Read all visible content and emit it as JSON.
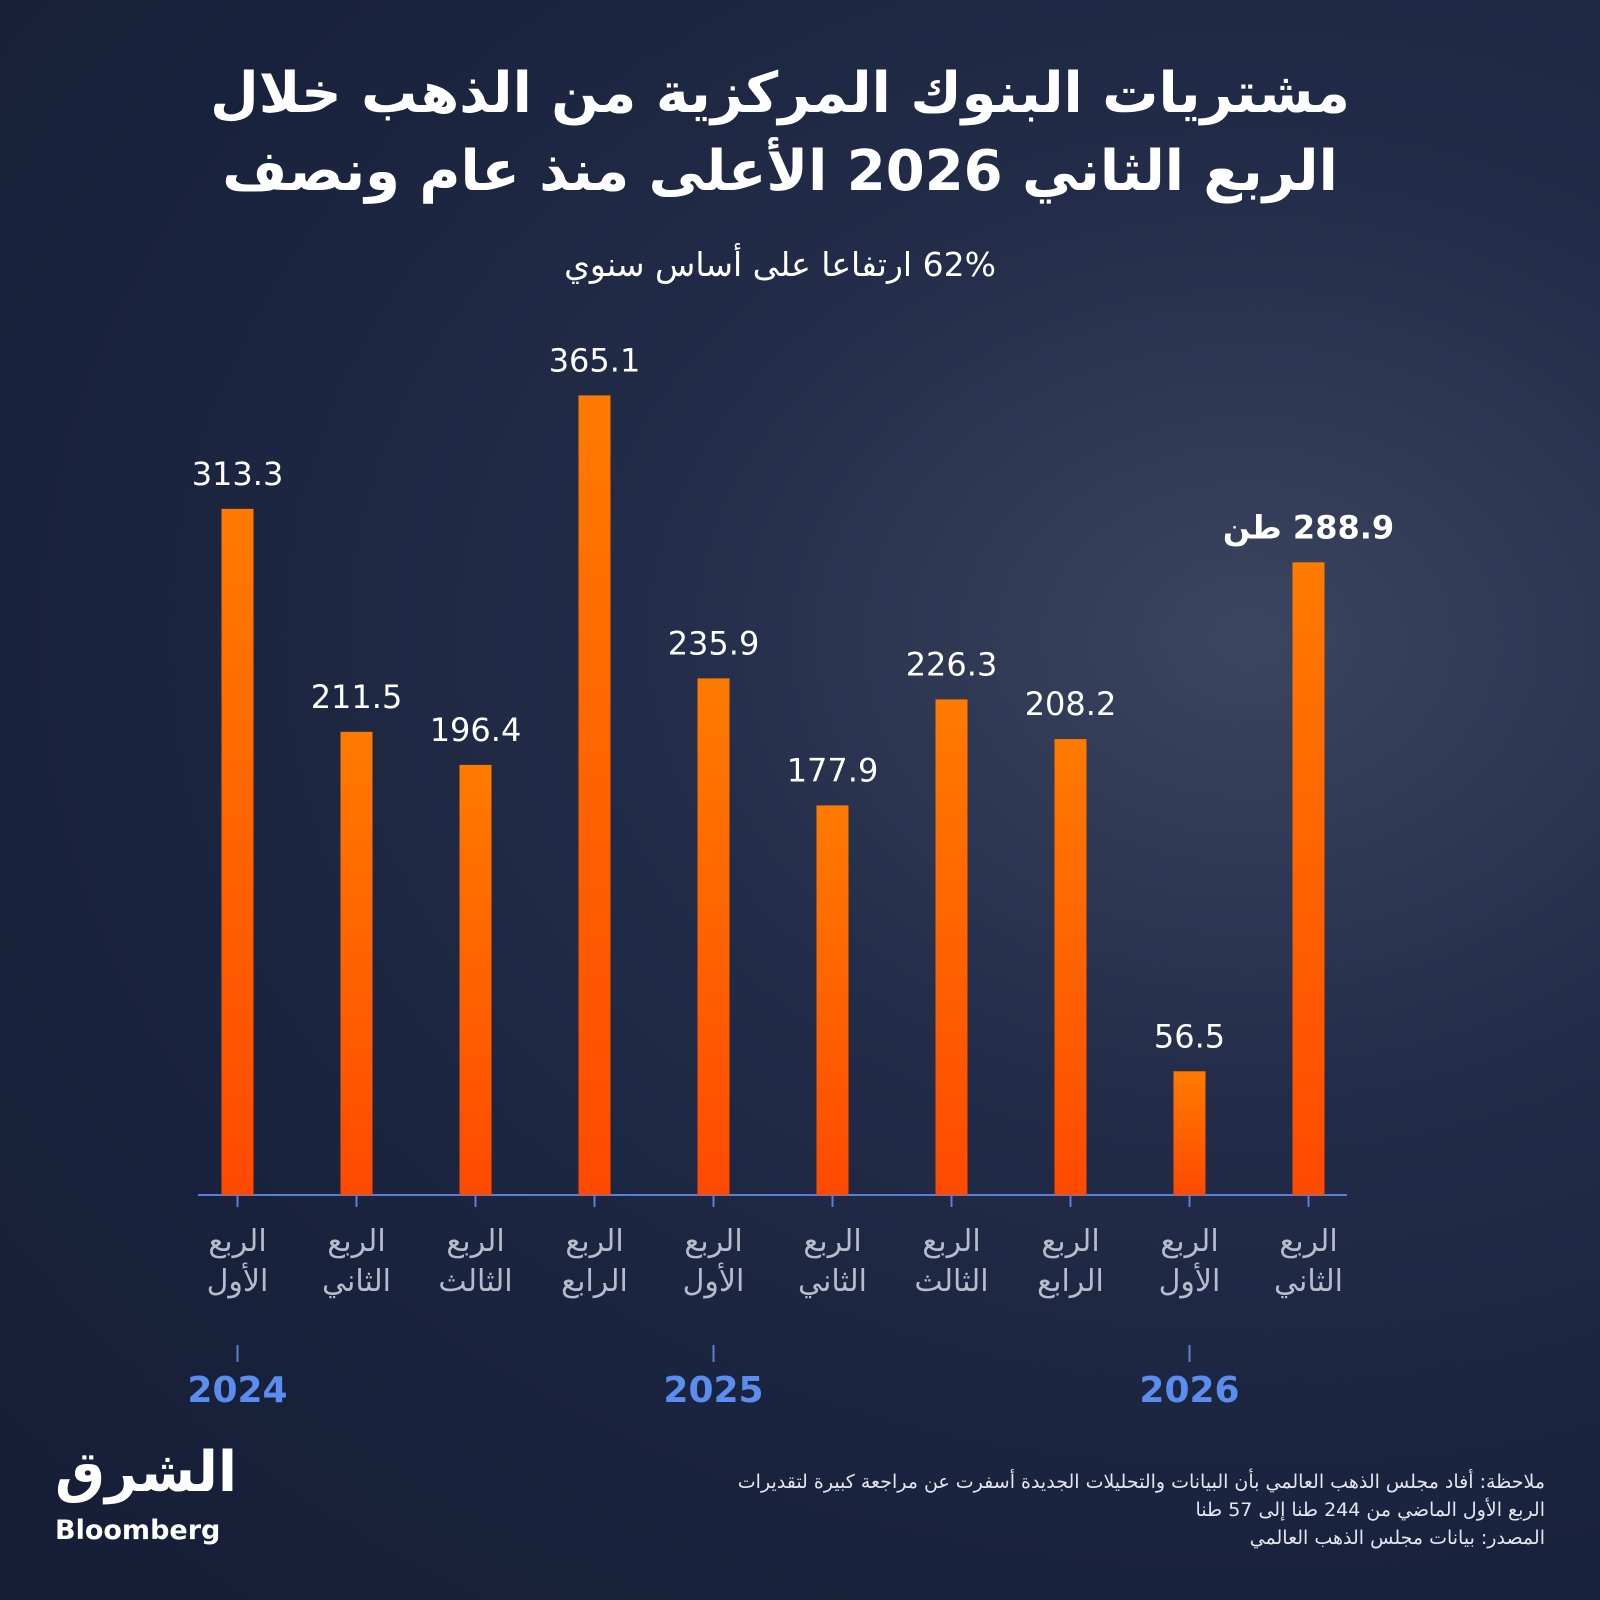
{
  "chart_data": {
    "type": "bar",
    "title": "مشتريات البنوك المركزية من الذهب خلال الربع الثاني 2026 الأعلى منذ عام ونصف",
    "subtitle": "62% ارتفاعا على أساس سنوي",
    "categories": [
      "الربع الأول",
      "الربع الثاني",
      "الربع الثالث",
      "الربع الرابع",
      "الربع الأول",
      "الربع الثاني",
      "الربع الثالث",
      "الربع الرابع",
      "الربع الأول",
      "الربع الثاني"
    ],
    "years": [
      "2024",
      "2025",
      "2026"
    ],
    "values": [
      313.3,
      211.5,
      196.4,
      365.1,
      235.9,
      177.9,
      226.3,
      208.2,
      56.5,
      288.9
    ],
    "value_labels": [
      "313.3",
      "211.5",
      "196.4",
      "365.1",
      "235.9",
      "177.9",
      "226.3",
      "208.2",
      "56.5",
      "288.9 طن"
    ],
    "color": "#ff6a00",
    "ylim": [
      0,
      400
    ],
    "note": "ملاحظة: أفاد مجلس الذهب العالمي بأن البيانات والتحليلات الجديدة أسفرت عن مراجعة كبيرة لتقديرات الربع الأول الماضي من 244 طنا إلى 57 طنا",
    "source": "المصدر: بيانات مجلس الذهب العالمي",
    "logo": {
      "arabic": "الشرق",
      "english": "Bloomberg"
    }
  }
}
